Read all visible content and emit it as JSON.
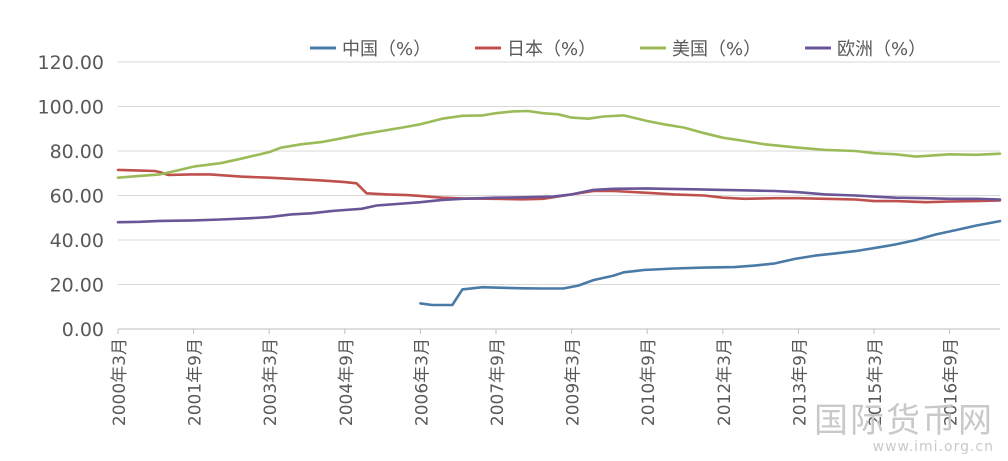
{
  "chart_data": {
    "type": "line",
    "title": "",
    "xlabel": "",
    "ylabel": "",
    "ylim": [
      0,
      120
    ],
    "yticks": [
      "0.00",
      "20.00",
      "40.00",
      "60.00",
      "80.00",
      "100.00",
      "120.00"
    ],
    "xlim": [
      2000.167,
      2017.667
    ],
    "xticks": [
      {
        "label": "2000年3月",
        "x": 2000.167
      },
      {
        "label": "2001年9月",
        "x": 2001.667
      },
      {
        "label": "2003年3月",
        "x": 2003.167
      },
      {
        "label": "2004年9月",
        "x": 2004.667
      },
      {
        "label": "2006年3月",
        "x": 2006.167
      },
      {
        "label": "2007年9月",
        "x": 2007.667
      },
      {
        "label": "2009年3月",
        "x": 2009.167
      },
      {
        "label": "2010年9月",
        "x": 2010.667
      },
      {
        "label": "2012年3月",
        "x": 2012.167
      },
      {
        "label": "2013年9月",
        "x": 2013.667
      },
      {
        "label": "2015年3月",
        "x": 2015.167
      },
      {
        "label": "2016年9月",
        "x": 2016.667
      }
    ],
    "grid": "horizontal",
    "legend_position": "top",
    "series": [
      {
        "name": "中国（%）",
        "color": "#4a7ba7",
        "points": [
          [
            2006.167,
            11.5
          ],
          [
            2006.4,
            10.8
          ],
          [
            2006.8,
            10.8
          ],
          [
            2007.0,
            17.8
          ],
          [
            2007.4,
            18.8
          ],
          [
            2007.8,
            18.5
          ],
          [
            2008.2,
            18.3
          ],
          [
            2008.6,
            18.2
          ],
          [
            2009.0,
            18.2
          ],
          [
            2009.3,
            19.5
          ],
          [
            2009.6,
            22.0
          ],
          [
            2010.0,
            24.0
          ],
          [
            2010.2,
            25.5
          ],
          [
            2010.6,
            26.5
          ],
          [
            2011.2,
            27.2
          ],
          [
            2011.8,
            27.6
          ],
          [
            2012.4,
            27.8
          ],
          [
            2012.8,
            28.5
          ],
          [
            2013.2,
            29.5
          ],
          [
            2013.6,
            31.5
          ],
          [
            2014.0,
            33.0
          ],
          [
            2014.4,
            34.0
          ],
          [
            2014.8,
            35.0
          ],
          [
            2015.2,
            36.5
          ],
          [
            2015.6,
            38.0
          ],
          [
            2016.0,
            40.0
          ],
          [
            2016.4,
            42.5
          ],
          [
            2016.8,
            44.5
          ],
          [
            2017.2,
            46.5
          ],
          [
            2017.667,
            48.5
          ]
        ]
      },
      {
        "name": "日本（%）",
        "color": "#c0504d",
        "points": [
          [
            2000.167,
            71.5
          ],
          [
            2000.6,
            71.2
          ],
          [
            2000.9,
            71.0
          ],
          [
            2001.0,
            70.5
          ],
          [
            2001.167,
            69.2
          ],
          [
            2001.6,
            69.5
          ],
          [
            2002.0,
            69.5
          ],
          [
            2002.6,
            68.5
          ],
          [
            2003.167,
            68.0
          ],
          [
            2003.6,
            67.5
          ],
          [
            2004.2,
            66.8
          ],
          [
            2004.667,
            66.0
          ],
          [
            2004.9,
            65.5
          ],
          [
            2005.1,
            61.0
          ],
          [
            2005.5,
            60.5
          ],
          [
            2005.9,
            60.2
          ],
          [
            2006.167,
            59.8
          ],
          [
            2006.6,
            59.0
          ],
          [
            2007.0,
            58.7
          ],
          [
            2007.667,
            58.5
          ],
          [
            2008.2,
            58.3
          ],
          [
            2008.6,
            58.5
          ],
          [
            2009.167,
            60.5
          ],
          [
            2009.6,
            62.0
          ],
          [
            2010.0,
            62.0
          ],
          [
            2010.667,
            61.2
          ],
          [
            2011.2,
            60.5
          ],
          [
            2011.8,
            60.0
          ],
          [
            2012.167,
            59.0
          ],
          [
            2012.6,
            58.5
          ],
          [
            2013.2,
            58.8
          ],
          [
            2013.667,
            58.8
          ],
          [
            2014.2,
            58.5
          ],
          [
            2014.8,
            58.2
          ],
          [
            2015.167,
            57.5
          ],
          [
            2015.6,
            57.5
          ],
          [
            2016.2,
            57.0
          ],
          [
            2016.667,
            57.3
          ],
          [
            2017.2,
            57.5
          ],
          [
            2017.667,
            57.8
          ]
        ]
      },
      {
        "name": "美国（%）",
        "color": "#9bbb59",
        "points": [
          [
            2000.167,
            68.0
          ],
          [
            2000.6,
            68.8
          ],
          [
            2001.0,
            69.5
          ],
          [
            2001.3,
            71.0
          ],
          [
            2001.667,
            73.0
          ],
          [
            2002.2,
            74.5
          ],
          [
            2002.6,
            76.5
          ],
          [
            2003.167,
            79.5
          ],
          [
            2003.4,
            81.5
          ],
          [
            2003.8,
            83.0
          ],
          [
            2004.2,
            84.0
          ],
          [
            2004.667,
            86.0
          ],
          [
            2005.0,
            87.5
          ],
          [
            2005.4,
            89.0
          ],
          [
            2005.8,
            90.5
          ],
          [
            2006.167,
            92.0
          ],
          [
            2006.6,
            94.5
          ],
          [
            2007.0,
            95.8
          ],
          [
            2007.4,
            96.0
          ],
          [
            2007.667,
            97.0
          ],
          [
            2008.0,
            97.8
          ],
          [
            2008.3,
            98.0
          ],
          [
            2008.6,
            97.0
          ],
          [
            2008.9,
            96.5
          ],
          [
            2009.167,
            95.0
          ],
          [
            2009.5,
            94.5
          ],
          [
            2009.8,
            95.5
          ],
          [
            2010.2,
            96.0
          ],
          [
            2010.667,
            93.5
          ],
          [
            2011.0,
            92.0
          ],
          [
            2011.4,
            90.5
          ],
          [
            2011.8,
            88.0
          ],
          [
            2012.167,
            86.0
          ],
          [
            2012.6,
            84.5
          ],
          [
            2013.0,
            83.0
          ],
          [
            2013.667,
            81.5
          ],
          [
            2014.2,
            80.5
          ],
          [
            2014.8,
            80.0
          ],
          [
            2015.167,
            79.0
          ],
          [
            2015.6,
            78.5
          ],
          [
            2016.0,
            77.5
          ],
          [
            2016.667,
            78.5
          ],
          [
            2017.2,
            78.3
          ],
          [
            2017.667,
            78.8
          ]
        ]
      },
      {
        "name": "欧洲（%）",
        "color": "#6a5597",
        "points": [
          [
            2000.167,
            48.0
          ],
          [
            2000.6,
            48.2
          ],
          [
            2001.0,
            48.6
          ],
          [
            2001.667,
            48.8
          ],
          [
            2002.2,
            49.2
          ],
          [
            2002.8,
            49.8
          ],
          [
            2003.167,
            50.3
          ],
          [
            2003.6,
            51.5
          ],
          [
            2004.0,
            52.0
          ],
          [
            2004.4,
            53.0
          ],
          [
            2004.667,
            53.5
          ],
          [
            2005.0,
            54.0
          ],
          [
            2005.3,
            55.5
          ],
          [
            2005.7,
            56.2
          ],
          [
            2006.167,
            57.0
          ],
          [
            2006.6,
            58.0
          ],
          [
            2007.0,
            58.5
          ],
          [
            2007.667,
            59.0
          ],
          [
            2008.2,
            59.2
          ],
          [
            2008.8,
            59.5
          ],
          [
            2009.167,
            60.5
          ],
          [
            2009.6,
            62.5
          ],
          [
            2010.0,
            63.0
          ],
          [
            2010.667,
            63.2
          ],
          [
            2011.0,
            63.0
          ],
          [
            2011.6,
            62.8
          ],
          [
            2012.167,
            62.5
          ],
          [
            2012.8,
            62.2
          ],
          [
            2013.2,
            62.0
          ],
          [
            2013.667,
            61.5
          ],
          [
            2014.2,
            60.5
          ],
          [
            2014.8,
            60.0
          ],
          [
            2015.167,
            59.5
          ],
          [
            2015.6,
            59.0
          ],
          [
            2016.2,
            58.8
          ],
          [
            2016.667,
            58.5
          ],
          [
            2017.2,
            58.5
          ],
          [
            2017.667,
            58.2
          ]
        ]
      }
    ]
  },
  "watermark": {
    "logo": "国际货币网",
    "url": "www.imi.org.cn"
  }
}
